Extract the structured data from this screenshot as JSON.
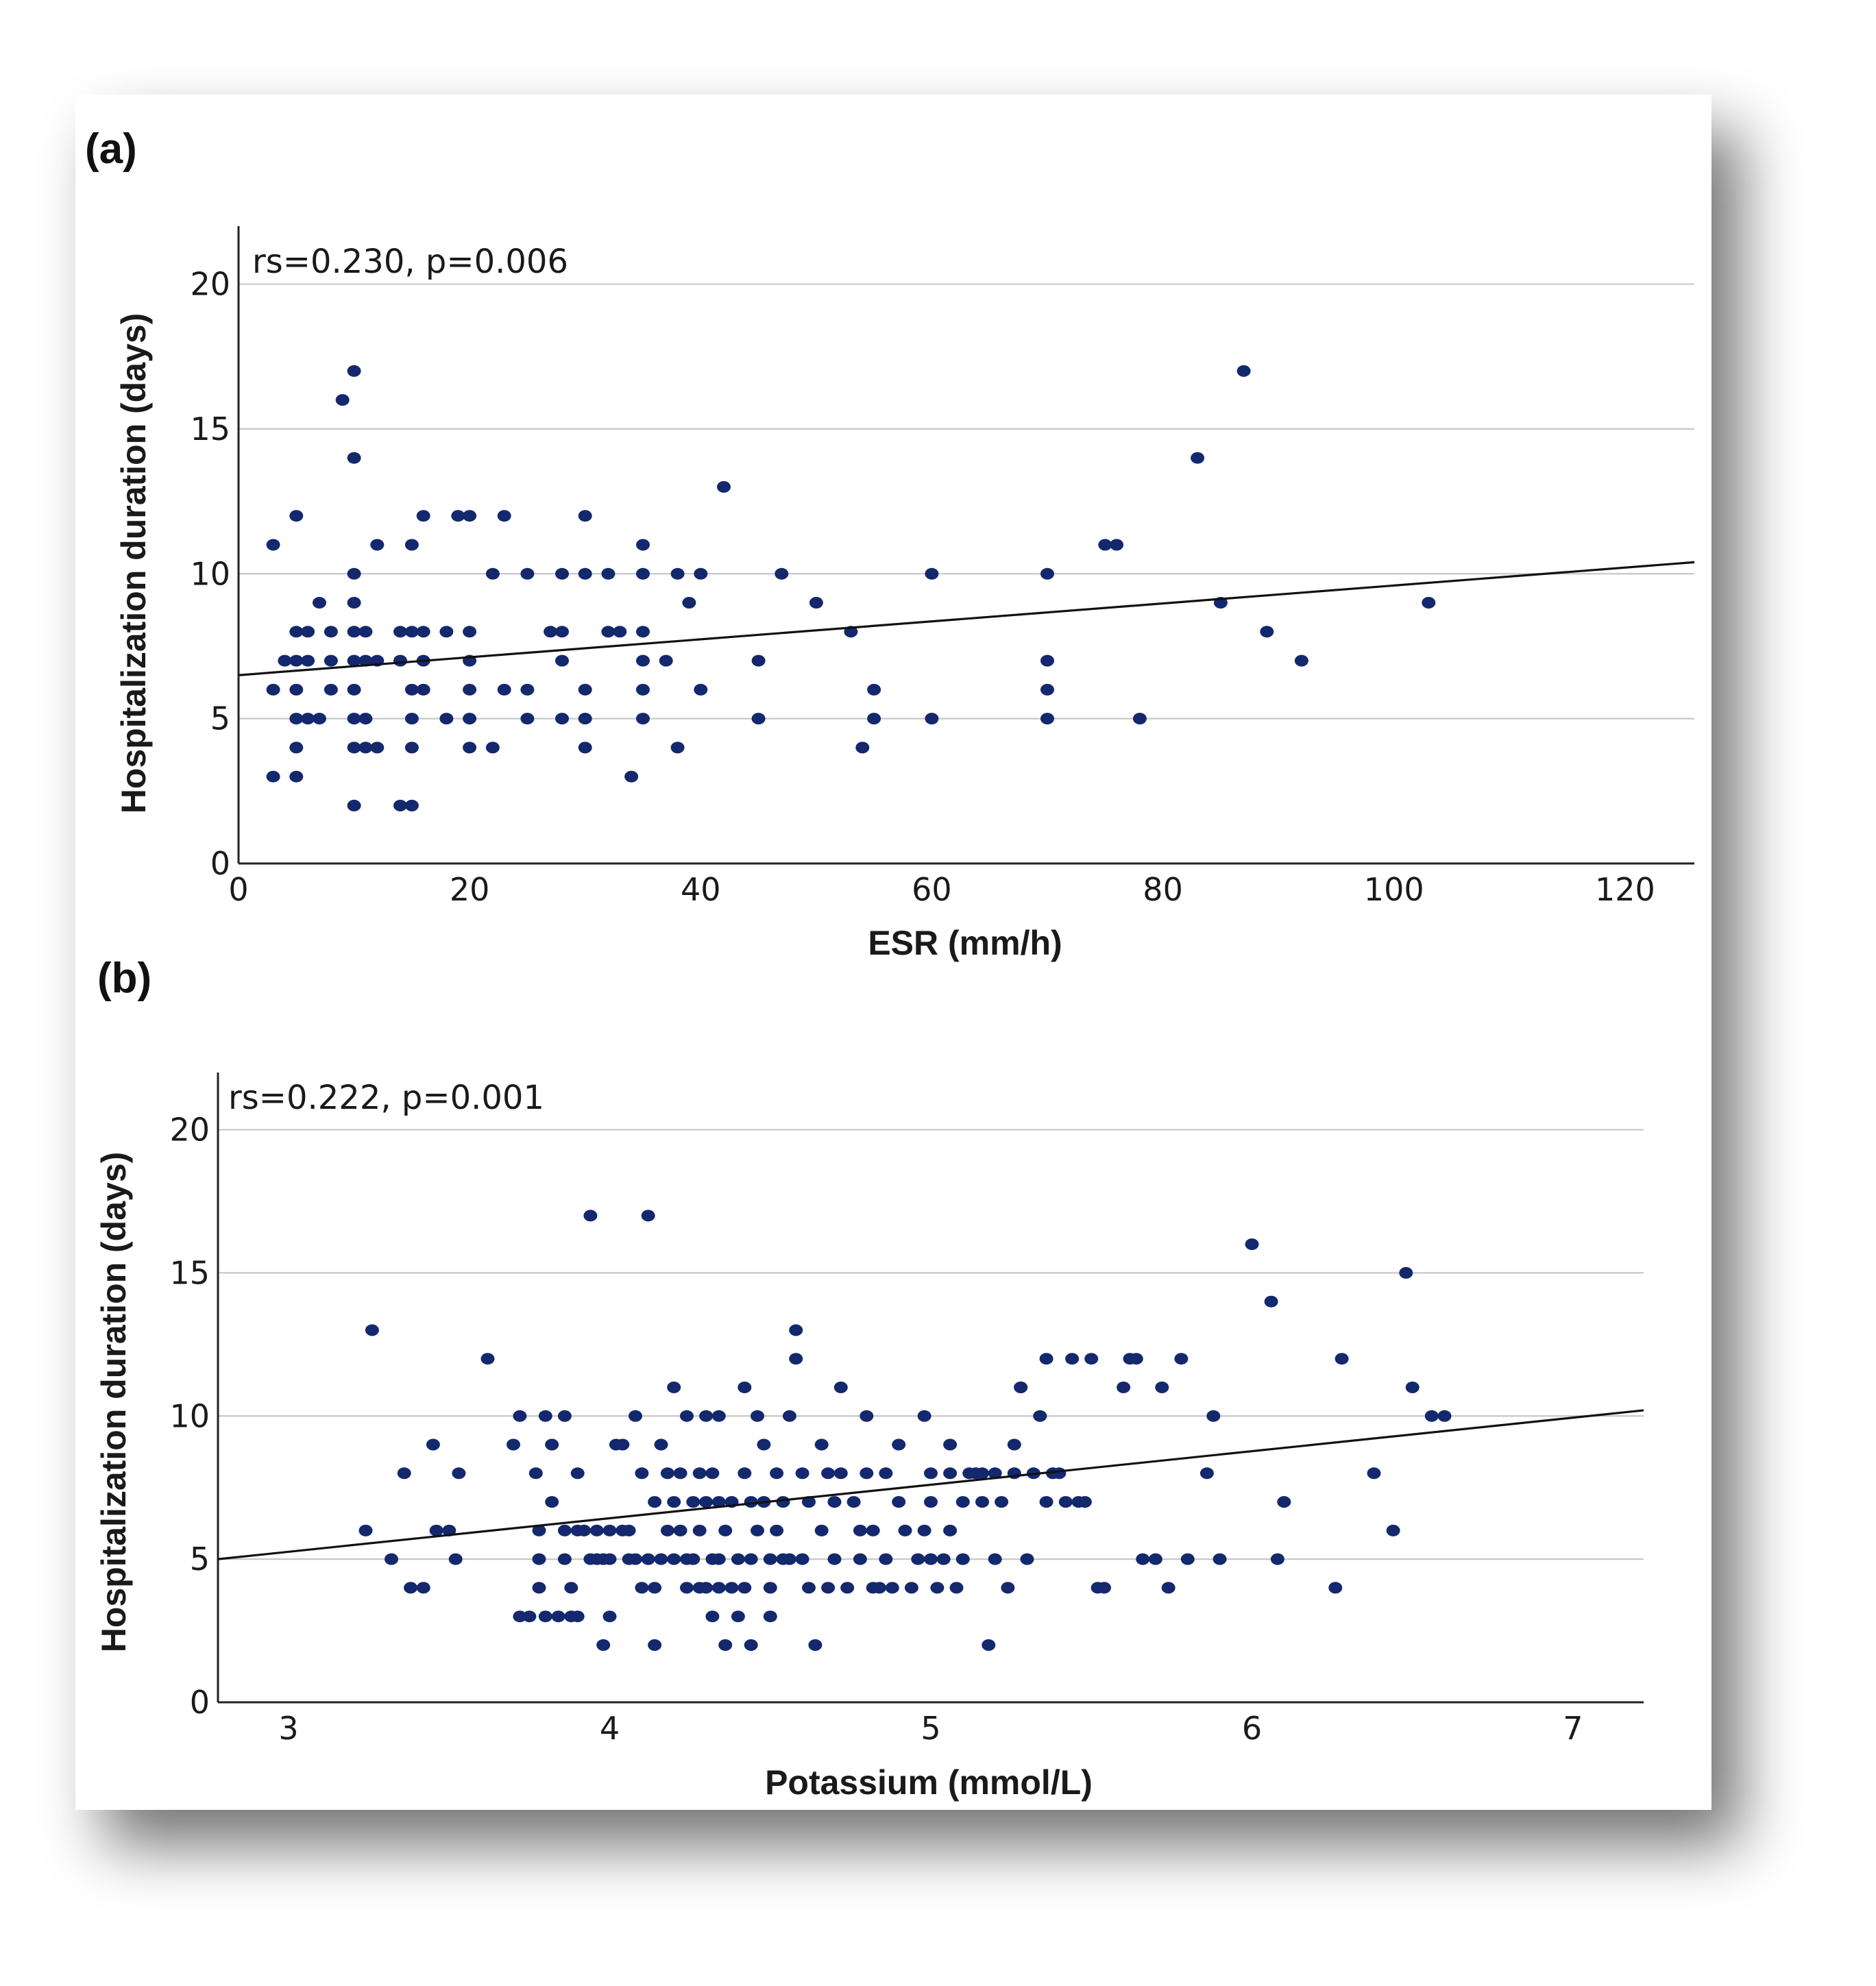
{
  "chart_data": [
    {
      "type": "scatter",
      "panel_label": "(a)",
      "annotation": "rs=0.230, p=0.006",
      "xlabel": "ESR (mm/h)",
      "ylabel": "Hospitalization duration (days)",
      "xlim": [
        0,
        126
      ],
      "ylim": [
        0,
        22
      ],
      "xticks": [
        0,
        20,
        40,
        60,
        80,
        100,
        120
      ],
      "yticks": [
        0,
        5,
        10,
        15,
        20
      ],
      "grid": "horizontal",
      "fit_line": {
        "x": [
          0,
          126
        ],
        "y": [
          6.5,
          10.4
        ]
      },
      "points": [
        [
          3,
          11
        ],
        [
          3,
          6
        ],
        [
          3,
          3
        ],
        [
          4,
          7
        ],
        [
          5,
          12
        ],
        [
          5,
          8
        ],
        [
          5,
          7
        ],
        [
          5,
          6
        ],
        [
          5,
          5
        ],
        [
          5,
          4
        ],
        [
          5,
          3
        ],
        [
          6,
          8
        ],
        [
          6,
          7
        ],
        [
          6,
          5
        ],
        [
          7,
          5
        ],
        [
          7,
          9
        ],
        [
          8,
          8
        ],
        [
          8,
          7
        ],
        [
          8,
          6
        ],
        [
          9,
          16
        ],
        [
          10,
          17
        ],
        [
          10,
          14
        ],
        [
          10,
          10
        ],
        [
          10,
          9
        ],
        [
          10,
          8
        ],
        [
          10,
          7
        ],
        [
          10,
          6
        ],
        [
          10,
          5
        ],
        [
          10,
          4
        ],
        [
          10,
          2
        ],
        [
          11,
          8
        ],
        [
          11,
          7
        ],
        [
          11,
          5
        ],
        [
          11,
          4
        ],
        [
          12,
          11
        ],
        [
          12,
          7
        ],
        [
          12,
          4
        ],
        [
          14,
          8
        ],
        [
          14,
          7
        ],
        [
          14,
          2
        ],
        [
          15,
          11
        ],
        [
          15,
          8
        ],
        [
          15,
          6
        ],
        [
          15,
          5
        ],
        [
          15,
          4
        ],
        [
          15,
          2
        ],
        [
          16,
          8
        ],
        [
          16,
          7
        ],
        [
          16,
          6
        ],
        [
          16,
          12
        ],
        [
          18,
          8
        ],
        [
          18,
          5
        ],
        [
          19,
          12
        ],
        [
          20,
          12
        ],
        [
          20,
          8
        ],
        [
          20,
          7
        ],
        [
          20,
          6
        ],
        [
          20,
          5
        ],
        [
          20,
          4
        ],
        [
          22,
          10
        ],
        [
          22,
          4
        ],
        [
          23,
          12
        ],
        [
          23,
          6
        ],
        [
          25,
          10
        ],
        [
          25,
          6
        ],
        [
          25,
          5
        ],
        [
          27,
          8
        ],
        [
          28,
          8
        ],
        [
          28,
          10
        ],
        [
          28,
          7
        ],
        [
          28,
          5
        ],
        [
          30,
          12
        ],
        [
          30,
          10
        ],
        [
          30,
          6
        ],
        [
          30,
          5
        ],
        [
          30,
          4
        ],
        [
          32,
          10
        ],
        [
          32,
          8
        ],
        [
          33,
          8
        ],
        [
          34,
          3
        ],
        [
          35,
          11
        ],
        [
          35,
          10
        ],
        [
          35,
          8
        ],
        [
          35,
          7
        ],
        [
          35,
          6
        ],
        [
          35,
          5
        ],
        [
          37,
          7
        ],
        [
          38,
          10
        ],
        [
          38,
          4
        ],
        [
          39,
          9
        ],
        [
          40,
          10
        ],
        [
          40,
          6
        ],
        [
          42,
          13
        ],
        [
          45,
          7
        ],
        [
          45,
          5
        ],
        [
          47,
          10
        ],
        [
          50,
          9
        ],
        [
          53,
          8
        ],
        [
          54,
          4
        ],
        [
          55,
          6
        ],
        [
          55,
          5
        ],
        [
          60,
          10
        ],
        [
          60,
          5
        ],
        [
          70,
          10
        ],
        [
          70,
          7
        ],
        [
          70,
          6
        ],
        [
          70,
          5
        ],
        [
          75,
          11
        ],
        [
          76,
          11
        ],
        [
          78,
          5
        ],
        [
          83,
          14
        ],
        [
          85,
          9
        ],
        [
          87,
          17
        ],
        [
          89,
          8
        ],
        [
          92,
          7
        ],
        [
          103,
          9
        ]
      ]
    },
    {
      "type": "scatter",
      "panel_label": "(b)",
      "annotation": "rs=0.222, p=0.001",
      "xlabel": "Potassium (mmol/L)",
      "ylabel": "Hospitalization duration (days)",
      "xlim": [
        2.78,
        7.22
      ],
      "ylim": [
        0,
        22
      ],
      "xticks": [
        3,
        4,
        5,
        6,
        7
      ],
      "yticks": [
        0,
        5,
        10,
        15,
        20
      ],
      "grid": "horizontal",
      "fit_line": {
        "x": [
          2.78,
          7.22
        ],
        "y": [
          5.0,
          10.2
        ]
      },
      "points": [
        [
          3.24,
          6
        ],
        [
          3.26,
          13
        ],
        [
          3.32,
          5
        ],
        [
          3.36,
          8
        ],
        [
          3.38,
          4
        ],
        [
          3.42,
          4
        ],
        [
          3.45,
          9
        ],
        [
          3.46,
          6
        ],
        [
          3.5,
          6
        ],
        [
          3.52,
          5
        ],
        [
          3.53,
          8
        ],
        [
          3.62,
          12
        ],
        [
          3.7,
          9
        ],
        [
          3.72,
          10
        ],
        [
          3.72,
          3
        ],
        [
          3.75,
          3
        ],
        [
          3.77,
          8
        ],
        [
          3.78,
          6
        ],
        [
          3.78,
          5
        ],
        [
          3.78,
          4
        ],
        [
          3.8,
          3
        ],
        [
          3.8,
          10
        ],
        [
          3.82,
          9
        ],
        [
          3.82,
          7
        ],
        [
          3.84,
          3
        ],
        [
          3.86,
          10
        ],
        [
          3.86,
          6
        ],
        [
          3.86,
          5
        ],
        [
          3.88,
          4
        ],
        [
          3.88,
          3
        ],
        [
          3.9,
          3
        ],
        [
          3.9,
          8
        ],
        [
          3.9,
          6
        ],
        [
          3.92,
          6
        ],
        [
          3.94,
          5
        ],
        [
          3.96,
          5
        ],
        [
          3.94,
          17
        ],
        [
          3.96,
          6
        ],
        [
          3.98,
          5
        ],
        [
          3.98,
          2
        ],
        [
          4,
          6
        ],
        [
          4,
          5
        ],
        [
          4,
          3
        ],
        [
          4.02,
          9
        ],
        [
          4.04,
          9
        ],
        [
          4.04,
          6
        ],
        [
          4.06,
          6
        ],
        [
          4.06,
          5
        ],
        [
          4.08,
          10
        ],
        [
          4.08,
          5
        ],
        [
          4.1,
          8
        ],
        [
          4.1,
          4
        ],
        [
          4.12,
          17
        ],
        [
          4.12,
          5
        ],
        [
          4.14,
          2
        ],
        [
          4.14,
          7
        ],
        [
          4.14,
          4
        ],
        [
          4.16,
          9
        ],
        [
          4.16,
          5
        ],
        [
          4.18,
          8
        ],
        [
          4.18,
          6
        ],
        [
          4.2,
          7
        ],
        [
          4.2,
          5
        ],
        [
          4.2,
          11
        ],
        [
          4.22,
          8
        ],
        [
          4.22,
          6
        ],
        [
          4.24,
          10
        ],
        [
          4.24,
          5
        ],
        [
          4.24,
          4
        ],
        [
          4.26,
          7
        ],
        [
          4.26,
          5
        ],
        [
          4.28,
          8
        ],
        [
          4.28,
          6
        ],
        [
          4.28,
          4
        ],
        [
          4.3,
          10
        ],
        [
          4.3,
          7
        ],
        [
          4.3,
          4
        ],
        [
          4.32,
          8
        ],
        [
          4.32,
          5
        ],
        [
          4.32,
          3
        ],
        [
          4.34,
          10
        ],
        [
          4.34,
          7
        ],
        [
          4.34,
          5
        ],
        [
          4.34,
          4
        ],
        [
          4.36,
          6
        ],
        [
          4.36,
          2
        ],
        [
          4.38,
          7
        ],
        [
          4.38,
          4
        ],
        [
          4.4,
          5
        ],
        [
          4.4,
          3
        ],
        [
          4.42,
          11
        ],
        [
          4.42,
          8
        ],
        [
          4.42,
          4
        ],
        [
          4.44,
          7
        ],
        [
          4.44,
          5
        ],
        [
          4.44,
          2
        ],
        [
          4.46,
          10
        ],
        [
          4.46,
          6
        ],
        [
          4.48,
          9
        ],
        [
          4.48,
          7
        ],
        [
          4.5,
          4
        ],
        [
          4.5,
          5
        ],
        [
          4.5,
          3
        ],
        [
          4.52,
          8
        ],
        [
          4.52,
          6
        ],
        [
          4.54,
          7
        ],
        [
          4.54,
          5
        ],
        [
          4.56,
          10
        ],
        [
          4.56,
          5
        ],
        [
          4.58,
          12
        ],
        [
          4.58,
          13
        ],
        [
          4.6,
          8
        ],
        [
          4.6,
          5
        ],
        [
          4.62,
          7
        ],
        [
          4.62,
          4
        ],
        [
          4.64,
          2
        ],
        [
          4.66,
          9
        ],
        [
          4.66,
          6
        ],
        [
          4.68,
          8
        ],
        [
          4.68,
          4
        ],
        [
          4.7,
          7
        ],
        [
          4.7,
          5
        ],
        [
          4.72,
          11
        ],
        [
          4.72,
          8
        ],
        [
          4.74,
          4
        ],
        [
          4.76,
          7
        ],
        [
          4.78,
          6
        ],
        [
          4.78,
          5
        ],
        [
          4.8,
          8
        ],
        [
          4.8,
          10
        ],
        [
          4.82,
          6
        ],
        [
          4.82,
          4
        ],
        [
          4.84,
          4
        ],
        [
          4.86,
          8
        ],
        [
          4.86,
          5
        ],
        [
          4.88,
          4
        ],
        [
          4.9,
          9
        ],
        [
          4.9,
          7
        ],
        [
          4.92,
          6
        ],
        [
          4.94,
          4
        ],
        [
          4.96,
          5
        ],
        [
          4.98,
          10
        ],
        [
          4.98,
          6
        ],
        [
          5,
          8
        ],
        [
          5,
          7
        ],
        [
          5,
          5
        ],
        [
          5.02,
          4
        ],
        [
          5.04,
          5
        ],
        [
          5.06,
          9
        ],
        [
          5.06,
          8
        ],
        [
          5.06,
          6
        ],
        [
          5.08,
          4
        ],
        [
          5.1,
          7
        ],
        [
          5.1,
          5
        ],
        [
          5.12,
          8
        ],
        [
          5.14,
          8
        ],
        [
          5.16,
          8
        ],
        [
          5.16,
          7
        ],
        [
          5.18,
          2
        ],
        [
          5.2,
          5
        ],
        [
          5.2,
          8
        ],
        [
          5.22,
          7
        ],
        [
          5.24,
          4
        ],
        [
          5.26,
          9
        ],
        [
          5.26,
          8
        ],
        [
          5.28,
          11
        ],
        [
          5.28,
          11
        ],
        [
          5.3,
          5
        ],
        [
          5.32,
          8
        ],
        [
          5.34,
          10
        ],
        [
          5.36,
          12
        ],
        [
          5.36,
          7
        ],
        [
          5.38,
          8
        ],
        [
          5.4,
          8
        ],
        [
          5.42,
          7
        ],
        [
          5.44,
          12
        ],
        [
          5.46,
          7
        ],
        [
          5.48,
          7
        ],
        [
          5.5,
          12
        ],
        [
          5.52,
          4
        ],
        [
          5.54,
          4
        ],
        [
          5.6,
          11
        ],
        [
          5.62,
          12
        ],
        [
          5.64,
          12
        ],
        [
          5.66,
          5
        ],
        [
          5.7,
          5
        ],
        [
          5.72,
          11
        ],
        [
          5.74,
          4
        ],
        [
          5.78,
          12
        ],
        [
          5.8,
          5
        ],
        [
          5.86,
          8
        ],
        [
          5.88,
          10
        ],
        [
          5.9,
          5
        ],
        [
          6.0,
          16
        ],
        [
          6.06,
          14
        ],
        [
          6.08,
          5
        ],
        [
          6.1,
          7
        ],
        [
          6.26,
          4
        ],
        [
          6.28,
          12
        ],
        [
          6.38,
          8
        ],
        [
          6.44,
          6
        ],
        [
          6.48,
          15
        ],
        [
          6.5,
          11
        ],
        [
          6.56,
          10
        ],
        [
          6.6,
          10
        ]
      ]
    }
  ],
  "colors": {
    "point": "#14286e",
    "line": "#111111",
    "grid": "#c8c8c8",
    "axis": "#222222"
  }
}
